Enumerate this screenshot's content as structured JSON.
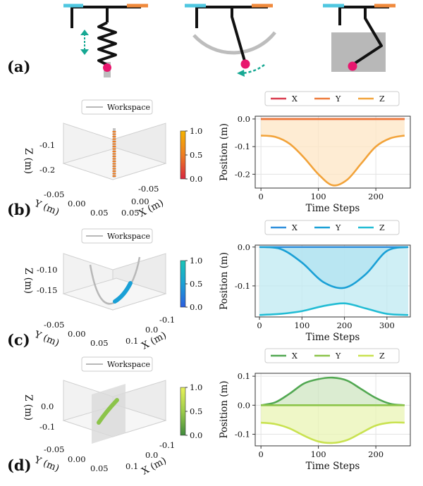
{
  "panel_labels": {
    "a": "(a)",
    "b": "(b)",
    "c": "(c)",
    "d": "(d)"
  },
  "colors": {
    "mount_left": "#4fc7e0",
    "mount_right": "#f08a3c",
    "effector": "#e8176e",
    "motion_arrow": "#16a893",
    "workspace": "#b8b8b8"
  },
  "workspace_legend": "Workspace",
  "chart_data": [
    {
      "panel": "b",
      "type": "line",
      "x_label": "Time Steps",
      "y_label": "Position (m)",
      "xlim": [
        -10,
        260
      ],
      "ylim": [
        -0.25,
        0.01
      ],
      "x_ticks": [
        0,
        100,
        200
      ],
      "y_ticks": [
        0.0,
        -0.1,
        -0.2
      ],
      "y_tick_labels": [
        "0.0",
        "-0.1",
        "-0.2"
      ],
      "legend": [
        "X",
        "Y",
        "Z"
      ],
      "grid": true,
      "series": [
        {
          "name": "X",
          "color": "#d93a4e",
          "x": [
            0,
            250
          ],
          "y": [
            0.0,
            0.0
          ]
        },
        {
          "name": "Y",
          "color": "#ee7a3a",
          "x": [
            0,
            250
          ],
          "y": [
            0.0,
            0.0
          ]
        },
        {
          "name": "Z",
          "color": "#f2a33a",
          "fill": "#fde6c4",
          "x": [
            0,
            25,
            50,
            75,
            100,
            125,
            150,
            175,
            200,
            225,
            250
          ],
          "y": [
            -0.06,
            -0.065,
            -0.09,
            -0.14,
            -0.2,
            -0.24,
            -0.22,
            -0.16,
            -0.1,
            -0.07,
            -0.06
          ]
        }
      ],
      "colorbar": {
        "ticks": [
          "1.0",
          "0.5",
          "0.0"
        ],
        "colors": [
          "#f5b400",
          "#ef7d22",
          "#d8263f"
        ]
      },
      "plot3d": {
        "z_label": "Z (m)",
        "y_label": "Y (m)",
        "x_label": "X (m)",
        "z_ticks": [
          "-0.1",
          "-0.2"
        ],
        "y_ticks": [
          "-0.05",
          "0.00",
          "0.05"
        ],
        "x_ticks": [
          "-0.05",
          "0.00",
          "0.05"
        ]
      }
    },
    {
      "panel": "c",
      "type": "line",
      "x_label": "Time Steps",
      "y_label": "Position (m)",
      "xlim": [
        -10,
        355
      ],
      "ylim": [
        -0.18,
        0.005
      ],
      "x_ticks": [
        0,
        100,
        200,
        300
      ],
      "y_ticks": [
        0.0,
        -0.1
      ],
      "y_tick_labels": [
        "0.0",
        "-0.1"
      ],
      "legend": [
        "X",
        "Y",
        "Z"
      ],
      "grid": true,
      "series": [
        {
          "name": "X",
          "color": "#2f8fdc",
          "x": [
            0,
            350
          ],
          "y": [
            0.0,
            0.0
          ]
        },
        {
          "name": "Y",
          "color": "#1aa0d6",
          "fill": "#8ccdec",
          "x": [
            0,
            50,
            100,
            150,
            200,
            250,
            300,
            350
          ],
          "y": [
            0.0,
            -0.005,
            -0.04,
            -0.09,
            -0.105,
            -0.07,
            -0.01,
            0.0
          ]
        },
        {
          "name": "Z",
          "color": "#22bcd4",
          "fill": "#bfe9f1",
          "x": [
            0,
            50,
            100,
            150,
            200,
            250,
            300,
            350
          ],
          "y": [
            -0.175,
            -0.172,
            -0.165,
            -0.152,
            -0.145,
            -0.158,
            -0.172,
            -0.175
          ]
        }
      ],
      "colorbar": {
        "ticks": [
          "1.0",
          "0.5",
          "0.0"
        ],
        "colors": [
          "#1bc5b7",
          "#1aa0d6",
          "#2c5ee0"
        ]
      },
      "plot3d": {
        "z_label": "Z (m)",
        "y_label": "Y (m)",
        "x_label": "X (m)",
        "z_ticks": [
          "-0.10",
          "-0.15"
        ],
        "y_ticks": [
          "-0.05",
          "0.00",
          "0.05"
        ],
        "x_ticks": [
          "0.1",
          "0.0",
          "-0.1"
        ]
      }
    },
    {
      "panel": "d",
      "type": "line",
      "x_label": "Time Steps",
      "y_label": "Position (m)",
      "xlim": [
        -10,
        260
      ],
      "ylim": [
        -0.14,
        0.11
      ],
      "x_ticks": [
        0,
        100,
        200
      ],
      "y_ticks": [
        0.1,
        0.0,
        -0.1
      ],
      "y_tick_labels": [
        "0.1",
        "0.0",
        "-0.1"
      ],
      "legend": [
        "X",
        "Y",
        "Z"
      ],
      "grid": true,
      "series": [
        {
          "name": "X",
          "color": "#52a852",
          "fill": "#cfe6c2",
          "x": [
            0,
            25,
            50,
            75,
            100,
            125,
            150,
            175,
            200,
            225,
            250
          ],
          "y": [
            0.0,
            0.01,
            0.04,
            0.075,
            0.09,
            0.095,
            0.085,
            0.055,
            0.025,
            0.005,
            0.0
          ]
        },
        {
          "name": "Y",
          "color": "#8cc44a",
          "x": [
            0,
            250
          ],
          "y": [
            0.0,
            0.0
          ]
        },
        {
          "name": "Z",
          "color": "#c9e250",
          "fill": "#eaf4b4",
          "x": [
            0,
            25,
            50,
            75,
            100,
            125,
            150,
            175,
            200,
            225,
            250
          ],
          "y": [
            -0.06,
            -0.065,
            -0.08,
            -0.105,
            -0.125,
            -0.13,
            -0.12,
            -0.095,
            -0.07,
            -0.06,
            -0.06
          ]
        }
      ],
      "colorbar": {
        "ticks": [
          "1.0",
          "0.5",
          "0.0"
        ],
        "colors": [
          "#e8f25a",
          "#9ccc4a",
          "#3f8a3c"
        ]
      },
      "plot3d": {
        "z_label": "Z (m)",
        "y_label": "Y (m)",
        "x_label": "X (m)",
        "z_ticks": [
          "0.0",
          "-0.1"
        ],
        "y_ticks": [
          "-0.05",
          "0.00",
          "0.05"
        ],
        "x_ticks": [
          "0.1",
          "0.0",
          "-0.1"
        ]
      }
    }
  ]
}
